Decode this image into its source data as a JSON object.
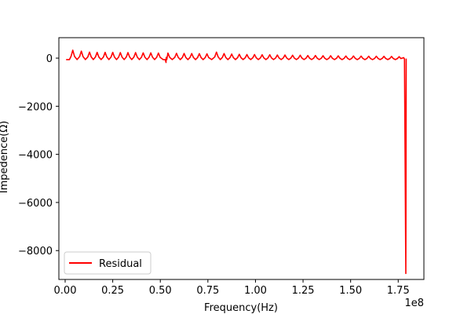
{
  "chart_data": {
    "type": "line",
    "title": "",
    "xlabel": "Frequency(Hz)",
    "ylabel": "Impedence(Ω)",
    "x_offset_text": "1e8",
    "xlim": [
      -3.3,
      188.5
    ],
    "ylim": [
      -9200,
      850
    ],
    "xticks": [
      {
        "value": 0,
        "label": "0.00"
      },
      {
        "value": 25,
        "label": "0.25"
      },
      {
        "value": 50,
        "label": "0.50"
      },
      {
        "value": 75,
        "label": "0.75"
      },
      {
        "value": 100,
        "label": "1.00"
      },
      {
        "value": 125,
        "label": "1.25"
      },
      {
        "value": 150,
        "label": "1.50"
      },
      {
        "value": 175,
        "label": "1.75"
      }
    ],
    "yticks": [
      {
        "value": 0,
        "label": "0"
      },
      {
        "value": -2000,
        "label": "−2000"
      },
      {
        "value": -4000,
        "label": "−4000"
      },
      {
        "value": -6000,
        "label": "−6000"
      },
      {
        "value": -8000,
        "label": "−8000"
      }
    ],
    "grid": false,
    "legend_position": "lower-left",
    "series": [
      {
        "name": "Residual",
        "color": "#ff0000",
        "peaks": [
          {
            "x": 4.0,
            "y": 330
          },
          {
            "x": 8.5,
            "y": 290
          },
          {
            "x": 12.8,
            "y": 250
          },
          {
            "x": 16.8,
            "y": 240
          },
          {
            "x": 21.0,
            "y": 240
          },
          {
            "x": 25.0,
            "y": 240
          },
          {
            "x": 29.0,
            "y": 230
          },
          {
            "x": 33.0,
            "y": 230
          },
          {
            "x": 37.0,
            "y": 230
          },
          {
            "x": 41.0,
            "y": 220
          },
          {
            "x": 45.0,
            "y": 220
          },
          {
            "x": 49.0,
            "y": 210
          },
          {
            "x": 54.0,
            "y": 210
          },
          {
            "x": 58.5,
            "y": 200
          },
          {
            "x": 62.5,
            "y": 195
          },
          {
            "x": 66.5,
            "y": 190
          },
          {
            "x": 70.5,
            "y": 185
          },
          {
            "x": 74.5,
            "y": 180
          },
          {
            "x": 79.5,
            "y": 250
          },
          {
            "x": 83.5,
            "y": 190
          },
          {
            "x": 87.5,
            "y": 170
          },
          {
            "x": 91.5,
            "y": 160
          },
          {
            "x": 95.5,
            "y": 150
          },
          {
            "x": 99.5,
            "y": 150
          },
          {
            "x": 103.5,
            "y": 140
          },
          {
            "x": 107.5,
            "y": 140
          },
          {
            "x": 111.5,
            "y": 130
          },
          {
            "x": 115.5,
            "y": 130
          },
          {
            "x": 119.5,
            "y": 120
          },
          {
            "x": 123.5,
            "y": 120
          },
          {
            "x": 127.5,
            "y": 110
          },
          {
            "x": 131.5,
            "y": 110
          },
          {
            "x": 135.5,
            "y": 100
          },
          {
            "x": 139.5,
            "y": 100
          },
          {
            "x": 143.5,
            "y": 95
          },
          {
            "x": 147.5,
            "y": 90
          },
          {
            "x": 151.5,
            "y": 90
          },
          {
            "x": 155.5,
            "y": 85
          },
          {
            "x": 159.5,
            "y": 80
          },
          {
            "x": 163.5,
            "y": 80
          },
          {
            "x": 167.5,
            "y": 75
          },
          {
            "x": 171.5,
            "y": 70
          },
          {
            "x": 175.5,
            "y": 60
          }
        ],
        "trough": -60,
        "notches": [
          {
            "x": 53.0,
            "y": -180
          }
        ],
        "end_drop": [
          {
            "x": 177.9,
            "y": 20
          },
          {
            "x": 178.3,
            "y": -40
          },
          {
            "x": 179.0,
            "y": -8950
          },
          {
            "x": 179.2,
            "y": -20
          }
        ]
      }
    ]
  }
}
